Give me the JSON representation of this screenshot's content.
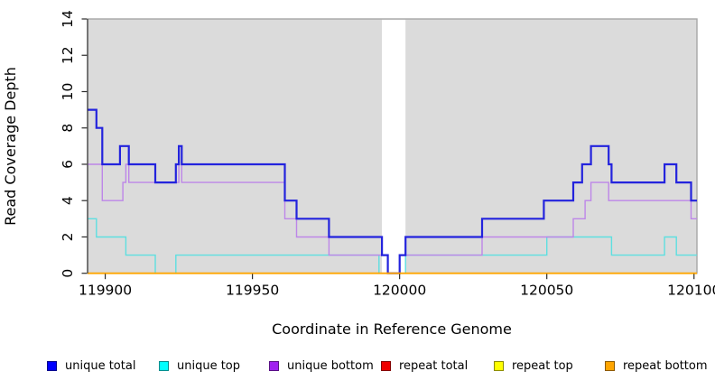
{
  "figure": {
    "title": "",
    "xlabel": "Coordinate in Reference Genome",
    "ylabel": "Read Coverage Depth"
  },
  "chart_data": {
    "type": "line",
    "subtype": "step",
    "title": "",
    "xlabel": "Coordinate in Reference Genome",
    "ylabel": "Read Coverage Depth",
    "xlim": [
      119894,
      120101
    ],
    "ylim": [
      0,
      14
    ],
    "x_ticks": [
      119900,
      119950,
      120000,
      120050,
      120100
    ],
    "y_ticks": [
      0,
      2,
      4,
      6,
      8,
      10,
      12,
      14
    ],
    "grid": false,
    "plot_bg_color": "#dbdbdb",
    "plot_border_color": "#a6a6a6",
    "gap_region": {
      "x_start": 119994,
      "x_end": 120002,
      "color": "#ffffff",
      "note": "white vertical band (no data) around coordinate 120000"
    },
    "legend_position": "bottom",
    "draw_order": [
      3,
      4,
      1,
      2,
      0,
      5
    ],
    "series": [
      {
        "name": "unique total",
        "color": "#0000ff",
        "line_color": "#2323dd",
        "line_width": 2.2,
        "steps": [
          [
            119894,
            9
          ],
          [
            119897,
            8
          ],
          [
            119899,
            6
          ],
          [
            119905,
            7
          ],
          [
            119908,
            6
          ],
          [
            119917,
            5
          ],
          [
            119924,
            6
          ],
          [
            119925,
            7
          ],
          [
            119926,
            6
          ],
          [
            119961,
            4
          ],
          [
            119965,
            3
          ],
          [
            119976,
            2
          ],
          [
            119994,
            1
          ],
          [
            119996,
            0
          ],
          [
            120000,
            1
          ],
          [
            120002,
            2
          ],
          [
            120028,
            3
          ],
          [
            120049,
            4
          ],
          [
            120059,
            5
          ],
          [
            120062,
            6
          ],
          [
            120065,
            7
          ],
          [
            120071,
            6
          ],
          [
            120072,
            5
          ],
          [
            120090,
            6
          ],
          [
            120094,
            5
          ],
          [
            120099,
            4
          ],
          [
            120101,
            4
          ]
        ]
      },
      {
        "name": "unique top",
        "color": "#00ffff",
        "line_color": "#5edfe0",
        "line_width": 1.4,
        "steps": [
          [
            119894,
            3
          ],
          [
            119897,
            2
          ],
          [
            119907,
            1
          ],
          [
            119917,
            0
          ],
          [
            119924,
            1
          ],
          [
            119993,
            0
          ],
          [
            120002,
            1
          ],
          [
            120050,
            2
          ],
          [
            120072,
            1
          ],
          [
            120090,
            2
          ],
          [
            120094,
            1
          ],
          [
            120101,
            1
          ]
        ]
      },
      {
        "name": "unique bottom",
        "color": "#a020f0",
        "line_color": "#bd86e8",
        "line_width": 1.4,
        "steps": [
          [
            119894,
            6
          ],
          [
            119899,
            4
          ],
          [
            119906,
            5
          ],
          [
            119907,
            6
          ],
          [
            119908,
            5
          ],
          [
            119925,
            7
          ],
          [
            119926,
            5
          ],
          [
            119961,
            3
          ],
          [
            119965,
            2
          ],
          [
            119976,
            1
          ],
          [
            119996,
            0
          ],
          [
            120000,
            1
          ],
          [
            120028,
            2
          ],
          [
            120059,
            3
          ],
          [
            120063,
            4
          ],
          [
            120065,
            5
          ],
          [
            120071,
            4
          ],
          [
            120099,
            3
          ],
          [
            120101,
            3
          ]
        ]
      },
      {
        "name": "repeat total",
        "color": "#ee0000",
        "line_color": "#ee0000",
        "line_width": 1.4,
        "steps": [
          [
            119894,
            0
          ],
          [
            120101,
            0
          ]
        ]
      },
      {
        "name": "repeat top",
        "color": "#ffff00",
        "line_color": "#ffff00",
        "line_width": 1.4,
        "steps": [
          [
            119894,
            0
          ],
          [
            120101,
            0
          ]
        ]
      },
      {
        "name": "repeat bottom",
        "color": "#ffa500",
        "line_color": "#ffa500",
        "line_width": 1.8,
        "steps": [
          [
            119894,
            0
          ],
          [
            120101,
            0
          ]
        ]
      }
    ]
  },
  "legend": {
    "items": [
      {
        "label": "unique total",
        "color": "#0000ff"
      },
      {
        "label": "unique top",
        "color": "#00ffff"
      },
      {
        "label": "unique bottom",
        "color": "#a020f0"
      },
      {
        "label": "repeat total",
        "color": "#ee0000"
      },
      {
        "label": "repeat top",
        "color": "#ffff00"
      },
      {
        "label": "repeat bottom",
        "color": "#ffa500"
      }
    ]
  }
}
